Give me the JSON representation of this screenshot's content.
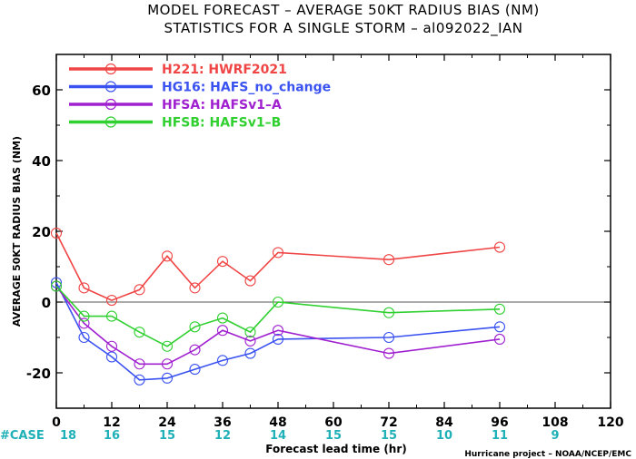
{
  "chart_data": {
    "type": "line",
    "title_line1": "MODEL FORECAST – AVERAGE 50KT RADIUS BIAS (NM)",
    "title_line2": "STATISTICS FOR A SINGLE STORM – al092022_IAN",
    "xlabel": "Forecast lead time (hr)",
    "ylabel": "AVERAGE 50KT RADIUS BIAS (NM)",
    "credit": "Hurricane project – NOAA/NCEP/EMC",
    "xlim": [
      0,
      120
    ],
    "ylim": [
      -30,
      70
    ],
    "xticks": [
      0,
      12,
      24,
      36,
      48,
      60,
      72,
      84,
      96,
      108,
      120
    ],
    "yticks": [
      -20,
      0,
      20,
      40,
      60
    ],
    "zero_line": true,
    "legend_position": "top-left",
    "case_label": "#CASE",
    "cases": [
      {
        "x": 0,
        "n": "18"
      },
      {
        "x": 12,
        "n": "16"
      },
      {
        "x": 24,
        "n": "15"
      },
      {
        "x": 36,
        "n": "12"
      },
      {
        "x": 48,
        "n": "14"
      },
      {
        "x": 60,
        "n": "15"
      },
      {
        "x": 72,
        "n": "15"
      },
      {
        "x": 84,
        "n": "10"
      },
      {
        "x": 96,
        "n": "11"
      },
      {
        "x": 108,
        "n": "9"
      }
    ],
    "series": [
      {
        "name": "H221: HWRF2021",
        "color": "#f04545",
        "x": [
          0,
          6,
          12,
          18,
          24,
          30,
          36,
          42,
          48,
          72,
          96
        ],
        "y": [
          19.5,
          4,
          0.5,
          3.5,
          13,
          4,
          11.5,
          6,
          14,
          12,
          15.5
        ]
      },
      {
        "name": "HG16: HAFS_no_change",
        "color": "#3a52f0",
        "x": [
          0,
          6,
          12,
          18,
          24,
          30,
          36,
          42,
          48,
          72,
          96
        ],
        "y": [
          5.5,
          -10,
          -15.5,
          -22,
          -21.5,
          -19,
          -16.5,
          -14.5,
          -10.5,
          -10,
          -7
        ]
      },
      {
        "name": "HFSA: HAFSv1–A",
        "color": "#a020d0",
        "x": [
          0,
          6,
          12,
          18,
          24,
          30,
          36,
          42,
          48,
          72,
          96
        ],
        "y": [
          4.5,
          -6,
          -12.5,
          -17.5,
          -17.5,
          -13.5,
          -8,
          -11,
          -8,
          -14.5,
          -10.5
        ]
      },
      {
        "name": "HFSB: HAFSv1–B",
        "color": "#30d030",
        "x": [
          0,
          6,
          12,
          18,
          24,
          30,
          36,
          42,
          48,
          72,
          96
        ],
        "y": [
          4.5,
          -4,
          -4,
          -8.5,
          -12.5,
          -7,
          -4.5,
          -8.5,
          0,
          -3,
          -2
        ]
      }
    ]
  }
}
